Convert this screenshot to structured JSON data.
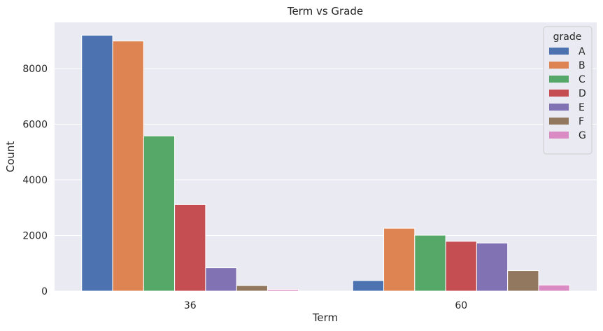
{
  "chart_data": {
    "type": "bar",
    "title": "Term vs Grade",
    "xlabel": "Term",
    "ylabel": "Count",
    "categories": [
      "36",
      "60"
    ],
    "ylim": [
      0,
      9660
    ],
    "yticks": [
      0,
      2000,
      4000,
      6000,
      8000
    ],
    "grid": true,
    "legend": {
      "title": "grade",
      "position": "top-right"
    },
    "series": [
      {
        "name": "A",
        "color": "#4c72b0",
        "values": [
          9200,
          380
        ]
      },
      {
        "name": "B",
        "color": "#dd8452",
        "values": [
          8990,
          2260
        ]
      },
      {
        "name": "C",
        "color": "#55a868",
        "values": [
          5580,
          2010
        ]
      },
      {
        "name": "D",
        "color": "#c44e52",
        "values": [
          3110,
          1790
        ]
      },
      {
        "name": "E",
        "color": "#8172b3",
        "values": [
          840,
          1730
        ]
      },
      {
        "name": "F",
        "color": "#937860",
        "values": [
          200,
          740
        ]
      },
      {
        "name": "G",
        "color": "#da8bc3",
        "values": [
          60,
          220
        ]
      }
    ],
    "background": "#eaeaf2",
    "gridColor": "#ffffff"
  }
}
